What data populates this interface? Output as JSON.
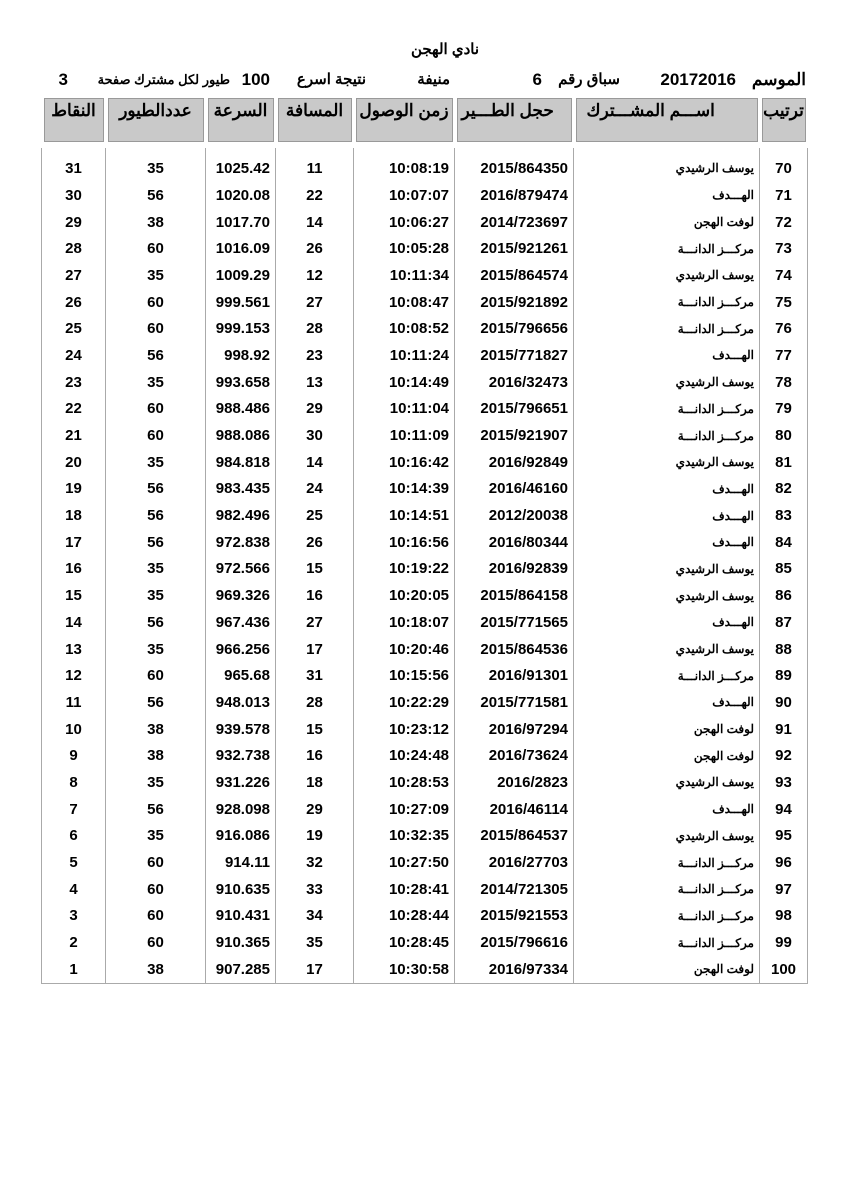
{
  "title": "نادي الهجن",
  "info": {
    "season_label": "الموسم",
    "season_value": "20172016",
    "race_label": "سباق رقم",
    "race_value": "6",
    "location": "منيفة",
    "result_label": "نتيجة اسرع",
    "result_count": "100",
    "per_label": "طيور لكل مشترك صفحة",
    "page": "3"
  },
  "columns": [
    "ترتيب",
    "اســـم المشـــترك",
    "حجل الطـــير",
    "زمن الوصول",
    "المسافة",
    "السرعة",
    "عددالطيور",
    "النقاط"
  ],
  "rows": [
    [
      "70",
      "يوسف الرشيدي",
      "2015/864350",
      "10:08:19",
      "11",
      "1025.42",
      "35",
      "31"
    ],
    [
      "71",
      "الهـــدف",
      "2016/879474",
      "10:07:07",
      "22",
      "1020.08",
      "56",
      "30"
    ],
    [
      "72",
      "لوفت الهجن",
      "2014/723697",
      "10:06:27",
      "14",
      "1017.70",
      "38",
      "29"
    ],
    [
      "73",
      "مركـــز الدانـــة",
      "2015/921261",
      "10:05:28",
      "26",
      "1016.09",
      "60",
      "28"
    ],
    [
      "74",
      "يوسف الرشيدي",
      "2015/864574",
      "10:11:34",
      "12",
      "1009.29",
      "35",
      "27"
    ],
    [
      "75",
      "مركـــز الدانـــة",
      "2015/921892",
      "10:08:47",
      "27",
      "999.561",
      "60",
      "26"
    ],
    [
      "76",
      "مركـــز الدانـــة",
      "2015/796656",
      "10:08:52",
      "28",
      "999.153",
      "60",
      "25"
    ],
    [
      "77",
      "الهـــدف",
      "2015/771827",
      "10:11:24",
      "23",
      "998.92",
      "56",
      "24"
    ],
    [
      "78",
      "يوسف الرشيدي",
      "2016/32473",
      "10:14:49",
      "13",
      "993.658",
      "35",
      "23"
    ],
    [
      "79",
      "مركـــز الدانـــة",
      "2015/796651",
      "10:11:04",
      "29",
      "988.486",
      "60",
      "22"
    ],
    [
      "80",
      "مركـــز الدانـــة",
      "2015/921907",
      "10:11:09",
      "30",
      "988.086",
      "60",
      "21"
    ],
    [
      "81",
      "يوسف الرشيدي",
      "2016/92849",
      "10:16:42",
      "14",
      "984.818",
      "35",
      "20"
    ],
    [
      "82",
      "الهـــدف",
      "2016/46160",
      "10:14:39",
      "24",
      "983.435",
      "56",
      "19"
    ],
    [
      "83",
      "الهـــدف",
      "2012/20038",
      "10:14:51",
      "25",
      "982.496",
      "56",
      "18"
    ],
    [
      "84",
      "الهـــدف",
      "2016/80344",
      "10:16:56",
      "26",
      "972.838",
      "56",
      "17"
    ],
    [
      "85",
      "يوسف الرشيدي",
      "2016/92839",
      "10:19:22",
      "15",
      "972.566",
      "35",
      "16"
    ],
    [
      "86",
      "يوسف الرشيدي",
      "2015/864158",
      "10:20:05",
      "16",
      "969.326",
      "35",
      "15"
    ],
    [
      "87",
      "الهـــدف",
      "2015/771565",
      "10:18:07",
      "27",
      "967.436",
      "56",
      "14"
    ],
    [
      "88",
      "يوسف الرشيدي",
      "2015/864536",
      "10:20:46",
      "17",
      "966.256",
      "35",
      "13"
    ],
    [
      "89",
      "مركـــز الدانـــة",
      "2016/91301",
      "10:15:56",
      "31",
      "965.68",
      "60",
      "12"
    ],
    [
      "90",
      "الهـــدف",
      "2015/771581",
      "10:22:29",
      "28",
      "948.013",
      "56",
      "11"
    ],
    [
      "91",
      "لوفت الهجن",
      "2016/97294",
      "10:23:12",
      "15",
      "939.578",
      "38",
      "10"
    ],
    [
      "92",
      "لوفت الهجن",
      "2016/73624",
      "10:24:48",
      "16",
      "932.738",
      "38",
      "9"
    ],
    [
      "93",
      "يوسف الرشيدي",
      "2016/2823",
      "10:28:53",
      "18",
      "931.226",
      "35",
      "8"
    ],
    [
      "94",
      "الهـــدف",
      "2016/46114",
      "10:27:09",
      "29",
      "928.098",
      "56",
      "7"
    ],
    [
      "95",
      "يوسف الرشيدي",
      "2015/864537",
      "10:32:35",
      "19",
      "916.086",
      "35",
      "6"
    ],
    [
      "96",
      "مركـــز الدانـــة",
      "2016/27703",
      "10:27:50",
      "32",
      "914.11",
      "60",
      "5"
    ],
    [
      "97",
      "مركـــز الدانـــة",
      "2014/721305",
      "10:28:41",
      "33",
      "910.635",
      "60",
      "4"
    ],
    [
      "98",
      "مركـــز الدانـــة",
      "2015/921553",
      "10:28:44",
      "34",
      "910.431",
      "60",
      "3"
    ],
    [
      "99",
      "مركـــز الدانـــة",
      "2015/796616",
      "10:28:45",
      "35",
      "910.365",
      "60",
      "2"
    ],
    [
      "100",
      "لوفت الهجن",
      "2016/97334",
      "10:30:58",
      "17",
      "907.285",
      "38",
      "1"
    ]
  ]
}
